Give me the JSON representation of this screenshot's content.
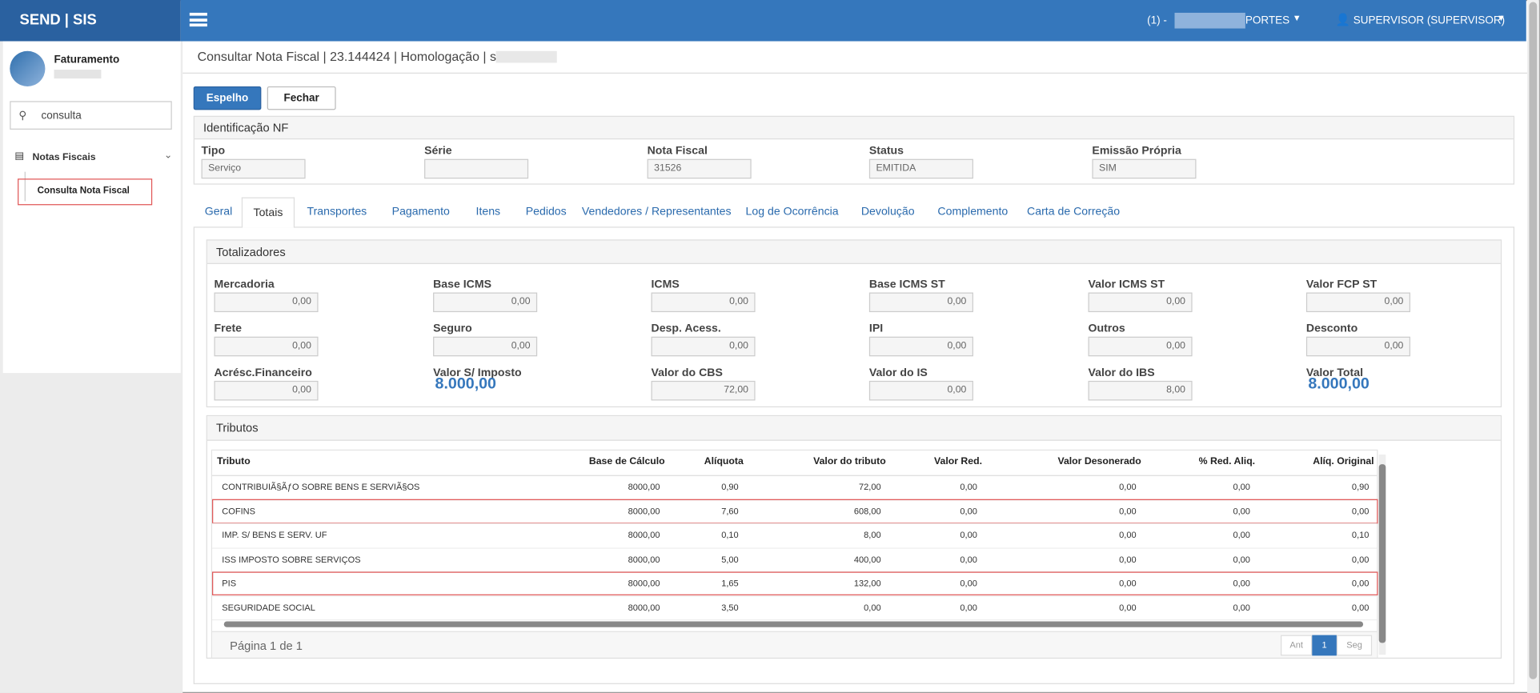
{
  "header": {
    "brand": "SEND | SIS",
    "company_prefix": "(1) -",
    "company_suffix": "PORTES",
    "user": "SUPERVISOR (SUPERVISOR)"
  },
  "sidebar": {
    "module": "Faturamento",
    "search": "consulta",
    "menu": {
      "label": "Notas Fiscais",
      "items": [
        "Consulta Nota Fiscal"
      ]
    }
  },
  "page": {
    "title": "Consultar Nota Fiscal | 23.144424 | Homologação | s",
    "buttons": [
      "Espelho",
      "Fechar"
    ]
  },
  "identification": {
    "title": "Identificação NF",
    "fields": [
      {
        "label": "Tipo",
        "value": "Serviço"
      },
      {
        "label": "Série",
        "value": ""
      },
      {
        "label": "Nota Fiscal",
        "value": "31526"
      },
      {
        "label": "Status",
        "value": "EMITIDA"
      },
      {
        "label": "Emissão Própria",
        "value": "SIM"
      }
    ]
  },
  "tabs": [
    "Geral",
    "Totais",
    "Transportes",
    "Pagamento",
    "Itens",
    "Pedidos",
    "Vendedores / Representantes",
    "Log de Ocorrência",
    "Devolução",
    "Complemento",
    "Carta de Correção"
  ],
  "totals": {
    "title": "Totalizadores",
    "fields": [
      {
        "label": "Mercadoria",
        "value": "0,00"
      },
      {
        "label": "Base ICMS",
        "value": "0,00"
      },
      {
        "label": "ICMS",
        "value": "0,00"
      },
      {
        "label": "Base ICMS ST",
        "value": "0,00"
      },
      {
        "label": "Valor ICMS ST",
        "value": "0,00"
      },
      {
        "label": "Valor FCP ST",
        "value": "0,00"
      },
      {
        "label": "Frete",
        "value": "0,00"
      },
      {
        "label": "Seguro",
        "value": "0,00"
      },
      {
        "label": "Desp. Acess.",
        "value": "0,00"
      },
      {
        "label": "IPI",
        "value": "0,00"
      },
      {
        "label": "Outros",
        "value": "0,00"
      },
      {
        "label": "Desconto",
        "value": "0,00"
      },
      {
        "label": "Acrésc.Financeiro",
        "value": "0,00"
      },
      {
        "label": "Valor S/ Imposto",
        "value": "8.000,00"
      },
      {
        "label": "Valor do CBS",
        "value": "72,00"
      },
      {
        "label": "Valor do IS",
        "value": "0,00"
      },
      {
        "label": "Valor do IBS",
        "value": "8,00"
      },
      {
        "label": "Valor Total",
        "value": "8.000,00"
      }
    ]
  },
  "tributos": {
    "title": "Tributos",
    "columns": [
      "Tributo",
      "Base de Cálculo",
      "Alíquota",
      "Valor do tributo",
      "Valor Red.",
      "Valor Desonerado",
      "% Red. Aliq.",
      "Alíq. Original"
    ],
    "rows": [
      [
        "CONTRIBUIÃ§ÃƒO SOBRE BENS E SERVIÃ§OS",
        "8000,00",
        "0,90",
        "72,00",
        "0,00",
        "0,00",
        "0,00",
        "0,90"
      ],
      [
        "COFINS",
        "8000,00",
        "7,60",
        "608,00",
        "0,00",
        "0,00",
        "0,00",
        "0,00"
      ],
      [
        "IMP. S/ BENS E SERV. UF",
        "8000,00",
        "0,10",
        "8,00",
        "0,00",
        "0,00",
        "0,00",
        "0,10"
      ],
      [
        "ISS IMPOSTO SOBRE SERVIÇOS",
        "8000,00",
        "5,00",
        "400,00",
        "0,00",
        "0,00",
        "0,00",
        "0,00"
      ],
      [
        "PIS",
        "8000,00",
        "1,65",
        "132,00",
        "0,00",
        "0,00",
        "0,00",
        "0,00"
      ],
      [
        "SEGURIDADE SOCIAL",
        "8000,00",
        "3,50",
        "0,00",
        "0,00",
        "0,00",
        "0,00",
        "0,00"
      ]
    ],
    "pager": {
      "text": "Página 1 de 1",
      "prev": "Ant",
      "current": "1",
      "next": "Seg"
    }
  }
}
